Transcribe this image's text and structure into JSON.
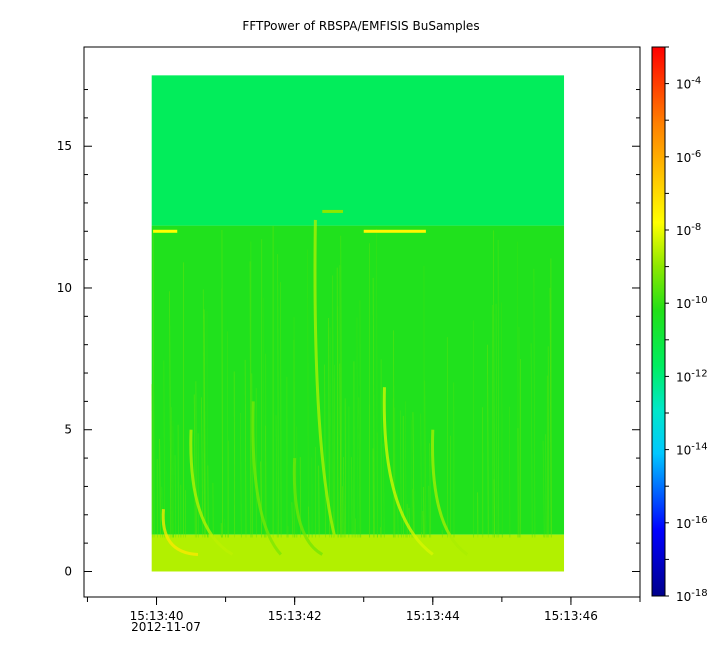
{
  "chart_data": {
    "type": "heatmap",
    "title": "FFTPower of RBSPA/EMFISIS  BuSamples",
    "xlabel": "",
    "ylabel": "",
    "x_date_label": "2012-11-07",
    "x_ticks": [
      "15:13:40",
      "15:13:42",
      "15:13:44",
      "15:13:46"
    ],
    "x_range_seconds": [
      38.95,
      47.0
    ],
    "data_x_range_seconds": [
      39.93,
      45.9
    ],
    "y_ticks": [
      0,
      5,
      10,
      15
    ],
    "y_range": [
      -0.9,
      18.5
    ],
    "data_y_range": [
      0,
      17.5
    ],
    "colorbar": {
      "scale": "log",
      "range": [
        1e-18,
        0.001
      ],
      "tick_labels": [
        {
          "base": "10",
          "exp": "-4",
          "value": 0.0001
        },
        {
          "base": "10",
          "exp": "-6",
          "value": 1e-06
        },
        {
          "base": "10",
          "exp": "-8",
          "value": 1e-08
        },
        {
          "base": "10",
          "exp": "-10",
          "value": 1e-10
        },
        {
          "base": "10",
          "exp": "-12",
          "value": 1e-12
        },
        {
          "base": "10",
          "exp": "-14",
          "value": 1e-14
        },
        {
          "base": "10",
          "exp": "-16",
          "value": 1e-16
        },
        {
          "base": "10",
          "exp": "-18",
          "value": 1e-18
        }
      ]
    },
    "spectrogram": {
      "bands": [
        {
          "y_from": 12.2,
          "y_to": 17.5,
          "log_power": -11.6
        },
        {
          "y_from": 1.3,
          "y_to": 12.2,
          "log_power": -10.3
        },
        {
          "y_from": 0,
          "y_to": 1.3,
          "log_power": -8.6
        }
      ],
      "line_features": [
        {
          "y": 12.0,
          "x_from": 39.95,
          "x_to": 40.3,
          "log_power": -7.8
        },
        {
          "y": 12.0,
          "x_from": 43.0,
          "x_to": 43.9,
          "log_power": -7.6
        },
        {
          "y": 12.7,
          "x_from": 42.4,
          "x_to": 42.7,
          "log_power": -9.0
        }
      ],
      "chorus_elements": [
        {
          "t": 40.5,
          "f_top": 5.0,
          "width": 0.6,
          "log_power": -8.5
        },
        {
          "t": 42.3,
          "f_top": 12.4,
          "width": 0.35,
          "log_power": -8.6
        },
        {
          "t": 43.3,
          "f_top": 6.5,
          "width": 0.7,
          "log_power": -8.2
        },
        {
          "t": 44.0,
          "f_top": 5.0,
          "width": 0.5,
          "log_power": -8.7
        },
        {
          "t": 40.1,
          "f_top": 2.2,
          "width": 0.5,
          "log_power": -7.3
        },
        {
          "t": 41.4,
          "f_top": 6.0,
          "width": 0.4,
          "log_power": -9.2
        },
        {
          "t": 42.0,
          "f_top": 4.0,
          "width": 0.4,
          "log_power": -9.3
        }
      ]
    }
  },
  "colors": {
    "frame": "#000000",
    "background": "#ffffff"
  }
}
